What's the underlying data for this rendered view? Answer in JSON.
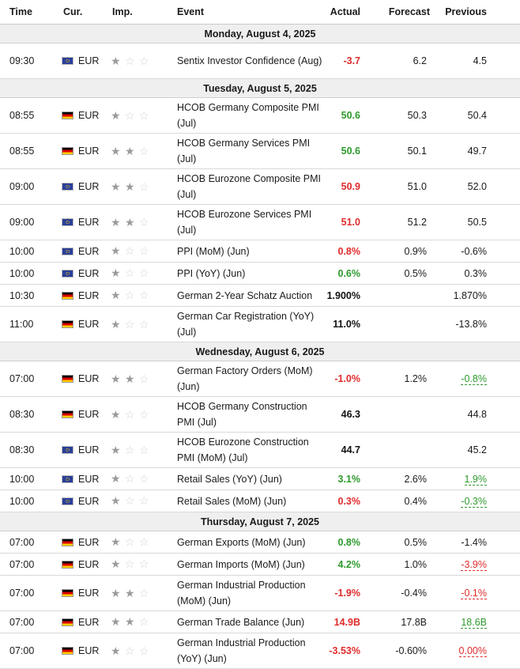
{
  "header": {
    "time": "Time",
    "currency": "Cur.",
    "importance": "Imp.",
    "event": "Event",
    "actual": "Actual",
    "forecast": "Forecast",
    "previous": "Previous"
  },
  "sections": [
    {
      "date": "Monday, August 4, 2025",
      "events": [
        {
          "time": "09:30",
          "flag": "eu",
          "currency": "EUR",
          "importance": 1,
          "event": "Sentix Investor Confidence (Aug)",
          "actual": "-3.7",
          "actual_color": "red",
          "forecast": "6.2",
          "previous": "4.5",
          "previous_status": "none",
          "tall": true
        }
      ]
    },
    {
      "date": "Tuesday, August 5, 2025",
      "events": [
        {
          "time": "08:55",
          "flag": "de",
          "currency": "EUR",
          "importance": 1,
          "event": "HCOB Germany Composite PMI (Jul)",
          "actual": "50.6",
          "actual_color": "green",
          "forecast": "50.3",
          "previous": "50.4",
          "previous_status": "none",
          "tall": true
        },
        {
          "time": "08:55",
          "flag": "de",
          "currency": "EUR",
          "importance": 2,
          "event": "HCOB Germany Services PMI (Jul)",
          "actual": "50.6",
          "actual_color": "green",
          "forecast": "50.1",
          "previous": "49.7",
          "previous_status": "none",
          "tall": true
        },
        {
          "time": "09:00",
          "flag": "eu",
          "currency": "EUR",
          "importance": 2,
          "event": "HCOB Eurozone Composite PMI (Jul)",
          "actual": "50.9",
          "actual_color": "red",
          "forecast": "51.0",
          "previous": "52.0",
          "previous_status": "none",
          "tall": true
        },
        {
          "time": "09:00",
          "flag": "eu",
          "currency": "EUR",
          "importance": 2,
          "event": "HCOB Eurozone Services PMI (Jul)",
          "actual": "51.0",
          "actual_color": "red",
          "forecast": "51.2",
          "previous": "50.5",
          "previous_status": "none",
          "tall": true
        },
        {
          "time": "10:00",
          "flag": "eu",
          "currency": "EUR",
          "importance": 1,
          "event": "PPI (MoM) (Jun)",
          "actual": "0.8%",
          "actual_color": "red",
          "forecast": "0.9%",
          "previous": "-0.6%",
          "previous_status": "none",
          "tall": false
        },
        {
          "time": "10:00",
          "flag": "eu",
          "currency": "EUR",
          "importance": 1,
          "event": "PPI (YoY) (Jun)",
          "actual": "0.6%",
          "actual_color": "green",
          "forecast": "0.5%",
          "previous": "0.3%",
          "previous_status": "none",
          "tall": false
        },
        {
          "time": "10:30",
          "flag": "de",
          "currency": "EUR",
          "importance": 1,
          "event": "German 2-Year Schatz Auction",
          "actual": "1.900%",
          "actual_color": "black",
          "forecast": "",
          "previous": "1.870%",
          "previous_status": "none",
          "tall": false
        },
        {
          "time": "11:00",
          "flag": "de",
          "currency": "EUR",
          "importance": 1,
          "event": "German Car Registration (YoY) (Jul)",
          "actual": "11.0%",
          "actual_color": "black",
          "forecast": "",
          "previous": "-13.8%",
          "previous_status": "none",
          "tall": true
        }
      ]
    },
    {
      "date": "Wednesday, August 6, 2025",
      "events": [
        {
          "time": "07:00",
          "flag": "de",
          "currency": "EUR",
          "importance": 2,
          "event": "German Factory Orders (MoM) (Jun)",
          "actual": "-1.0%",
          "actual_color": "red",
          "forecast": "1.2%",
          "previous": "-0.8%",
          "previous_status": "up",
          "tall": true
        },
        {
          "time": "08:30",
          "flag": "de",
          "currency": "EUR",
          "importance": 1,
          "event": "HCOB Germany Construction PMI (Jul)",
          "actual": "46.3",
          "actual_color": "black",
          "forecast": "",
          "previous": "44.8",
          "previous_status": "none",
          "tall": true
        },
        {
          "time": "08:30",
          "flag": "eu",
          "currency": "EUR",
          "importance": 1,
          "event": "HCOB Eurozone Construction PMI (MoM) (Jul)",
          "actual": "44.7",
          "actual_color": "black",
          "forecast": "",
          "previous": "45.2",
          "previous_status": "none",
          "tall": true
        },
        {
          "time": "10:00",
          "flag": "eu",
          "currency": "EUR",
          "importance": 1,
          "event": "Retail Sales (YoY) (Jun)",
          "actual": "3.1%",
          "actual_color": "green",
          "forecast": "2.6%",
          "previous": "1.9%",
          "previous_status": "up",
          "tall": false
        },
        {
          "time": "10:00",
          "flag": "eu",
          "currency": "EUR",
          "importance": 1,
          "event": "Retail Sales (MoM) (Jun)",
          "actual": "0.3%",
          "actual_color": "red",
          "forecast": "0.4%",
          "previous": "-0.3%",
          "previous_status": "up",
          "tall": false
        }
      ]
    },
    {
      "date": "Thursday, August 7, 2025",
      "events": [
        {
          "time": "07:00",
          "flag": "de",
          "currency": "EUR",
          "importance": 1,
          "event": "German Exports (MoM) (Jun)",
          "actual": "0.8%",
          "actual_color": "green",
          "forecast": "0.5%",
          "previous": "-1.4%",
          "previous_status": "none",
          "tall": false
        },
        {
          "time": "07:00",
          "flag": "de",
          "currency": "EUR",
          "importance": 1,
          "event": "German Imports (MoM) (Jun)",
          "actual": "4.2%",
          "actual_color": "green",
          "forecast": "1.0%",
          "previous": "-3.9%",
          "previous_status": "down",
          "tall": false
        },
        {
          "time": "07:00",
          "flag": "de",
          "currency": "EUR",
          "importance": 2,
          "event": "German Industrial Production (MoM) (Jun)",
          "actual": "-1.9%",
          "actual_color": "red",
          "forecast": "-0.4%",
          "previous": "-0.1%",
          "previous_status": "down",
          "tall": true
        },
        {
          "time": "07:00",
          "flag": "de",
          "currency": "EUR",
          "importance": 2,
          "event": "German Trade Balance (Jun)",
          "actual": "14.9B",
          "actual_color": "red",
          "forecast": "17.8B",
          "previous": "18.6B",
          "previous_status": "up",
          "tall": false
        },
        {
          "time": "07:00",
          "flag": "de",
          "currency": "EUR",
          "importance": 1,
          "event": "German Industrial Production (YoY) (Jun)",
          "actual": "-3.53%",
          "actual_color": "red",
          "forecast": "-0.60%",
          "previous": "0.00%",
          "previous_status": "down",
          "tall": true
        }
      ]
    }
  ]
}
